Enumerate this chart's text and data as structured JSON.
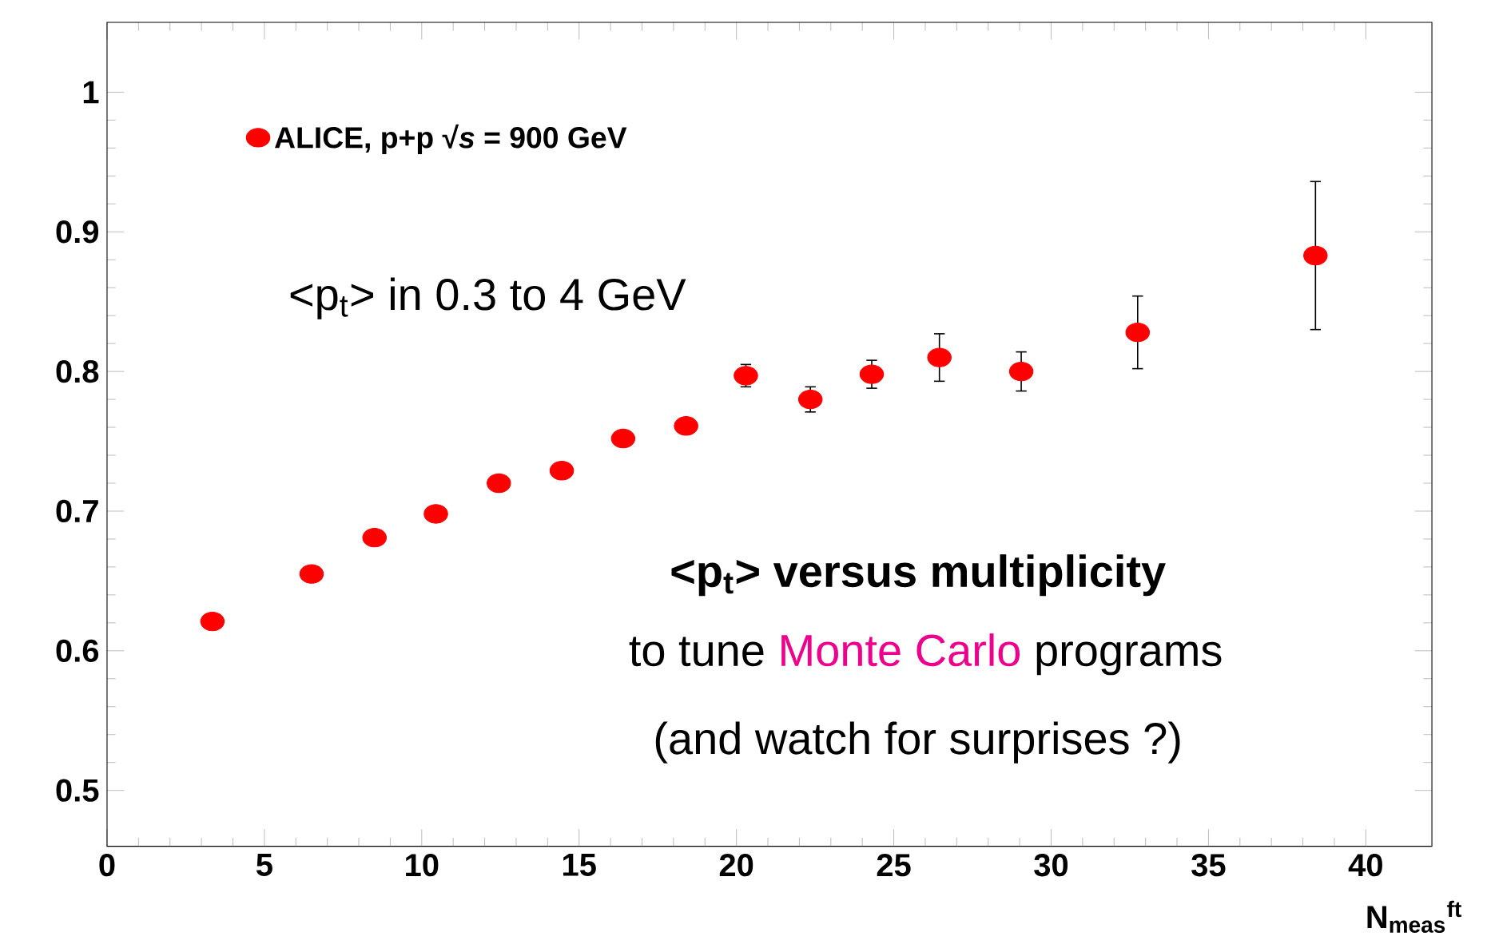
{
  "chart_data": {
    "type": "scatter",
    "xlabel": "N$_{meas}$$^{ft}$",
    "x": [
      3.35,
      6.5,
      8.5,
      10.45,
      12.45,
      14.45,
      16.4,
      18.4,
      20.3,
      22.35,
      24.3,
      26.45,
      29.05,
      32.75,
      38.4
    ],
    "series": [
      {
        "name": "ALICE, p+p √*s* = 900 GeV",
        "color": "#ff0000",
        "values": [
          0.621,
          0.655,
          0.681,
          0.698,
          0.72,
          0.729,
          0.752,
          0.761,
          0.797,
          0.78,
          0.798,
          0.81,
          0.8,
          0.828,
          0.883
        ],
        "errors": [
          null,
          null,
          null,
          null,
          null,
          null,
          null,
          null,
          0.008,
          0.009,
          0.01,
          0.017,
          0.014,
          0.026,
          0.053
        ]
      }
    ],
    "xlim": [
      0,
      42.1
    ],
    "ylim": [
      0.46,
      1.05
    ],
    "xticks": [
      0,
      5,
      10,
      15,
      20,
      25,
      30,
      35,
      40
    ],
    "yticks": [
      0.5,
      0.6,
      0.7,
      0.8,
      0.9,
      1
    ],
    "marker": "circle",
    "legend": "top left",
    "grid": false,
    "annotations": [
      "<p$_{t}$> in 0.3 to 4 GeV",
      "<p$_{t}$> versus multiplicity",
      "to tune",
      "Monte Carlo",
      "programs",
      "(and watch for surprises ?)"
    ]
  }
}
